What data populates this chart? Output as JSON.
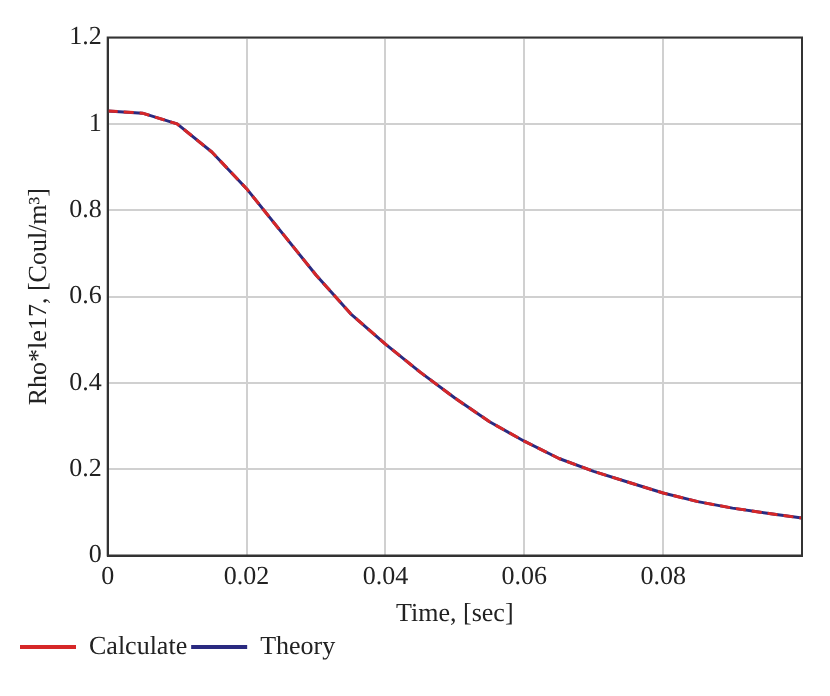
{
  "chart_data": {
    "type": "line",
    "xlabel": "Time, [sec]",
    "ylabel": "Rho*le17, [Coul/m³]",
    "x": [
      0,
      0.005,
      0.01,
      0.015,
      0.02,
      0.025,
      0.03,
      0.035,
      0.04,
      0.045,
      0.05,
      0.055,
      0.06,
      0.065,
      0.07,
      0.075,
      0.08,
      0.085,
      0.09,
      0.095,
      0.1
    ],
    "series": [
      {
        "name": "Calculate",
        "color": "#d62728",
        "line_style": "dashed",
        "values": [
          1.03,
          1.025,
          1.0,
          0.935,
          0.85,
          0.75,
          0.65,
          0.56,
          0.49,
          0.425,
          0.365,
          0.31,
          0.265,
          0.225,
          0.195,
          0.17,
          0.145,
          0.125,
          0.11,
          0.098,
          0.087
        ]
      },
      {
        "name": "Theory",
        "color": "#2a2a80",
        "line_style": "solid",
        "values": [
          1.03,
          1.025,
          1.0,
          0.935,
          0.85,
          0.75,
          0.65,
          0.56,
          0.49,
          0.425,
          0.365,
          0.31,
          0.265,
          0.225,
          0.195,
          0.17,
          0.145,
          0.125,
          0.11,
          0.098,
          0.087
        ]
      }
    ],
    "xlim": [
      0,
      0.1
    ],
    "xticks": [
      0,
      0.02,
      0.04,
      0.06,
      0.08
    ],
    "ylim": [
      0,
      1.2
    ],
    "yticks": [
      0,
      0.2,
      0.4,
      0.6,
      0.8,
      1,
      1.2
    ],
    "grid": true,
    "legend": "bottom left",
    "marker": "none"
  }
}
